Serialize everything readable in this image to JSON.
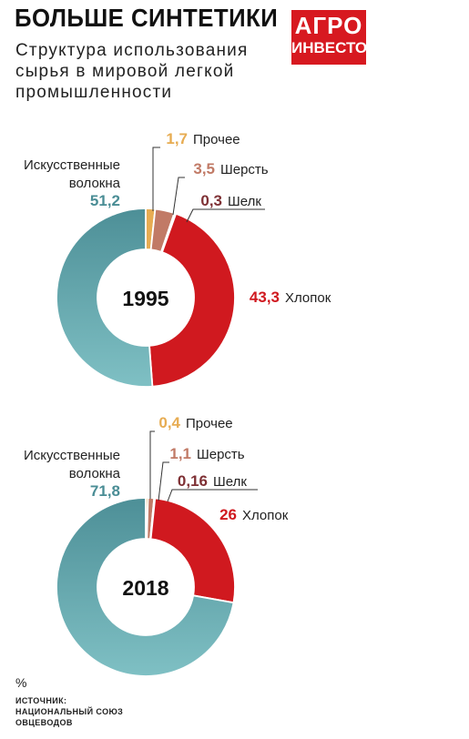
{
  "header": {
    "title": "БОЛЬШЕ СИНТЕТИКИ",
    "subtitle": "Структура использования сырья в мировой легкой промышленности",
    "logo_line1": "АГРО",
    "logo_line2": "ИНВЕСТОР"
  },
  "footer": {
    "unit": "%",
    "source": "ИСТОЧНИК: НАЦИОНАЛЬНЫЙ СОЮЗ ОВЦЕВОДОВ"
  },
  "colors": {
    "brand": "#d71920",
    "synthetic": "#66aeb4",
    "cotton": "#d0191f",
    "wool": "#c17a66",
    "silk": "#7e3034",
    "other": "#e7ac52"
  },
  "chart_data": [
    {
      "type": "donut",
      "center_label": "1995",
      "series": [
        {
          "label": "Прочее",
          "value": 1.7,
          "value_text": "1,7",
          "color": "#e7ac52"
        },
        {
          "label": "Шерсть",
          "value": 3.5,
          "value_text": "3,5",
          "color": "#c17a66"
        },
        {
          "label": "Шелк",
          "value": 0.3,
          "value_text": "0,3",
          "color": "#7e3034"
        },
        {
          "label": "Хлопок",
          "value": 43.3,
          "value_text": "43,3",
          "color": "#d0191f"
        },
        {
          "label": "Искусственные волокна",
          "value": 51.2,
          "value_text": "51,2",
          "color": "#66aeb4"
        }
      ]
    },
    {
      "type": "donut",
      "center_label": "2018",
      "series": [
        {
          "label": "Прочее",
          "value": 0.4,
          "value_text": "0,4",
          "color": "#e7ac52"
        },
        {
          "label": "Шерсть",
          "value": 1.1,
          "value_text": "1,1",
          "color": "#c17a66"
        },
        {
          "label": "Шелк",
          "value": 0.16,
          "value_text": "0,16",
          "color": "#7e3034"
        },
        {
          "label": "Хлопок",
          "value": 26,
          "value_text": "26",
          "color": "#d0191f"
        },
        {
          "label": "Искусственные волокна",
          "value": 71.8,
          "value_text": "71,8",
          "color": "#66aeb4"
        }
      ]
    }
  ]
}
